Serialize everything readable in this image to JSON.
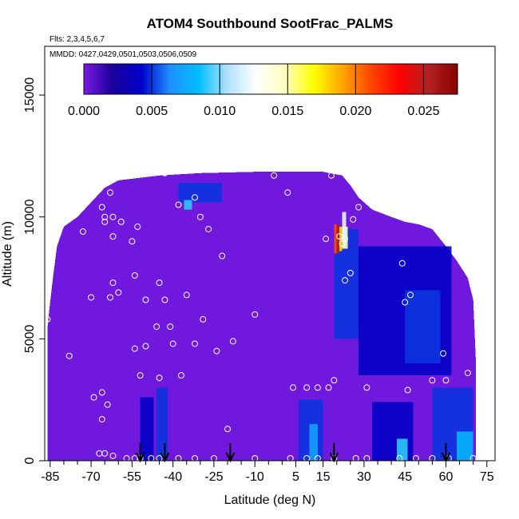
{
  "chart_data": {
    "type": "heatmap",
    "title": "ATOM4 Southbound SootFrac_PALMS",
    "subtitle_flights": "Flts: 2,3,4,5,6,7",
    "subtitle_dates": "MMDD: 0427,0429,0501,0503,0506,0509",
    "xlabel": "Latitude (deg N)",
    "ylabel": "Altitude (m)",
    "xlim": [
      -87,
      78
    ],
    "ylim": [
      0,
      17000
    ],
    "x_tick_labels": [
      "-85",
      "-70",
      "-55",
      "-40",
      "-25",
      "-10",
      "5",
      "15",
      "30",
      "45",
      "60",
      "75"
    ],
    "x_ticks": [
      -85,
      -70,
      -55,
      -40,
      -25,
      -10,
      5,
      15,
      30,
      45,
      60,
      75
    ],
    "x_minor_ticks": [
      -80,
      -75,
      -65,
      -60,
      -50,
      -45,
      -35,
      -30,
      -20,
      -15,
      -5,
      0,
      10,
      20,
      25,
      35,
      40,
      50,
      55,
      65,
      70
    ],
    "y_tick_labels": [
      "0",
      "5000",
      "10000",
      "15000"
    ],
    "y_ticks": [
      0,
      5000,
      10000,
      15000
    ],
    "colorbar": {
      "ticks": [
        "0.000",
        "0.005",
        "0.010",
        "0.015",
        "0.020",
        "0.025"
      ],
      "tick_values": [
        0,
        0.005,
        0.01,
        0.015,
        0.02,
        0.025
      ],
      "range": [
        0,
        0.0275
      ],
      "colors": [
        "#7a1ae6",
        "#1b0099",
        "#0000cd",
        "#1e90ff",
        "#00bfff",
        "#b0e2ff",
        "#ffffff",
        "#ffffc0",
        "#ffff00",
        "#ffa500",
        "#ff4500",
        "#ff0000",
        "#b22222",
        "#8b0000"
      ]
    },
    "background_value": 0.0002,
    "enhanced_regions": [
      {
        "lat": [
          -38,
          -22
        ],
        "alt": [
          10600,
          11400
        ],
        "value": 0.005
      },
      {
        "lat": [
          -36,
          -33
        ],
        "alt": [
          10300,
          10700
        ],
        "value": 0.009
      },
      {
        "lat": [
          -52,
          -47
        ],
        "alt": [
          0,
          2600
        ],
        "value": 0.004
      },
      {
        "lat": [
          -46,
          -42
        ],
        "alt": [
          0,
          3000
        ],
        "value": 0.005
      },
      {
        "lat": [
          6,
          15
        ],
        "alt": [
          0,
          2500
        ],
        "value": 0.005
      },
      {
        "lat": [
          10,
          13
        ],
        "alt": [
          0,
          1500
        ],
        "value": 0.007
      },
      {
        "lat": [
          33,
          48
        ],
        "alt": [
          0,
          2400
        ],
        "value": 0.004
      },
      {
        "lat": [
          42,
          46
        ],
        "alt": [
          0,
          900
        ],
        "value": 0.009
      },
      {
        "lat": [
          55,
          70
        ],
        "alt": [
          0,
          3000
        ],
        "value": 0.005
      },
      {
        "lat": [
          64,
          70
        ],
        "alt": [
          0,
          1200
        ],
        "value": 0.008
      },
      {
        "lat": [
          19,
          28
        ],
        "alt": [
          5000,
          9500
        ],
        "value": 0.005
      },
      {
        "lat": [
          28,
          62
        ],
        "alt": [
          3500,
          8800
        ],
        "value": 0.004
      },
      {
        "lat": [
          45,
          58
        ],
        "alt": [
          4000,
          7000
        ],
        "value": 0.005
      },
      {
        "lat": [
          22,
          24
        ],
        "alt": [
          8700,
          9600
        ],
        "value": 0.015
      },
      {
        "lat": [
          20,
          21
        ],
        "alt": [
          8500,
          9700
        ],
        "value": 0.025
      },
      {
        "lat": [
          19,
          20
        ],
        "alt": [
          8500,
          9700
        ],
        "value": 0.021
      },
      {
        "lat": [
          21,
          22
        ],
        "alt": [
          8600,
          9600
        ],
        "value": 0.018
      },
      {
        "lat": [
          22,
          23.5
        ],
        "alt": [
          9000,
          10200
        ],
        "value": 0.012
      }
    ],
    "sample_points": [
      [
        -86,
        5800
      ],
      [
        -78,
        4300
      ],
      [
        -73,
        9400
      ],
      [
        -64,
        11400
      ],
      [
        -62,
        10000
      ],
      [
        -65,
        9800
      ],
      [
        -62,
        9200
      ],
      [
        -59,
        9800
      ],
      [
        -53,
        9600
      ],
      [
        -55,
        9000
      ],
      [
        -66,
        10400
      ],
      [
        -65,
        10000
      ],
      [
        -63,
        11000
      ],
      [
        -43,
        11800
      ],
      [
        -38,
        10500
      ],
      [
        -32,
        10800
      ],
      [
        -30,
        10000
      ],
      [
        -27,
        9500
      ],
      [
        -22,
        8400
      ],
      [
        -35,
        6800
      ],
      [
        -43,
        6600
      ],
      [
        -46,
        5500
      ],
      [
        -41,
        5500
      ],
      [
        -40,
        4800
      ],
      [
        -32,
        4800
      ],
      [
        -29,
        5800
      ],
      [
        -24,
        4500
      ],
      [
        -18,
        4900
      ],
      [
        -3,
        11700
      ],
      [
        2,
        11000
      ],
      [
        18,
        11700
      ],
      [
        30,
        11700
      ],
      [
        28,
        10400
      ],
      [
        26,
        9900
      ],
      [
        21,
        9200
      ],
      [
        16,
        9100
      ],
      [
        23,
        9100
      ],
      [
        -54,
        7600
      ],
      [
        -62,
        7300
      ],
      [
        -70,
        6700
      ],
      [
        -63,
        6700
      ],
      [
        -60,
        6900
      ],
      [
        -50,
        6600
      ],
      [
        -45,
        7300
      ],
      [
        -54,
        4600
      ],
      [
        -50,
        4700
      ],
      [
        -45,
        3400
      ],
      [
        -37,
        3500
      ],
      [
        -52,
        3500
      ],
      [
        -69,
        2600
      ],
      [
        -66,
        2800
      ],
      [
        -64,
        2300
      ],
      [
        -66,
        1700
      ],
      [
        -67,
        300
      ],
      [
        -65,
        300
      ],
      [
        -62,
        200
      ],
      [
        -57,
        100
      ],
      [
        -54,
        100
      ],
      [
        -52,
        100
      ],
      [
        -48,
        100
      ],
      [
        -45,
        100
      ],
      [
        -38,
        100
      ],
      [
        -32,
        100
      ],
      [
        -25,
        100
      ],
      [
        -20,
        1300
      ],
      [
        -10,
        6000
      ],
      [
        -10,
        100
      ],
      [
        3,
        100
      ],
      [
        9,
        100
      ],
      [
        13,
        100
      ],
      [
        19,
        100
      ],
      [
        27,
        100
      ],
      [
        31,
        100
      ],
      [
        43,
        100
      ],
      [
        49,
        100
      ],
      [
        55,
        100
      ],
      [
        61,
        100
      ],
      [
        70,
        100
      ],
      [
        4,
        3000
      ],
      [
        9,
        3000
      ],
      [
        13,
        3000
      ],
      [
        17,
        3000
      ],
      [
        19,
        3300
      ],
      [
        31,
        3000
      ],
      [
        46,
        2900
      ],
      [
        55,
        3300
      ],
      [
        60,
        3300
      ],
      [
        68,
        3600
      ],
      [
        45,
        6500
      ],
      [
        47,
        6800
      ],
      [
        59,
        4400
      ],
      [
        23,
        7400
      ],
      [
        25,
        7700
      ],
      [
        22,
        8900
      ],
      [
        44,
        8100
      ]
    ],
    "arrows_lat": [
      -52,
      -43,
      -19,
      19,
      60
    ]
  }
}
